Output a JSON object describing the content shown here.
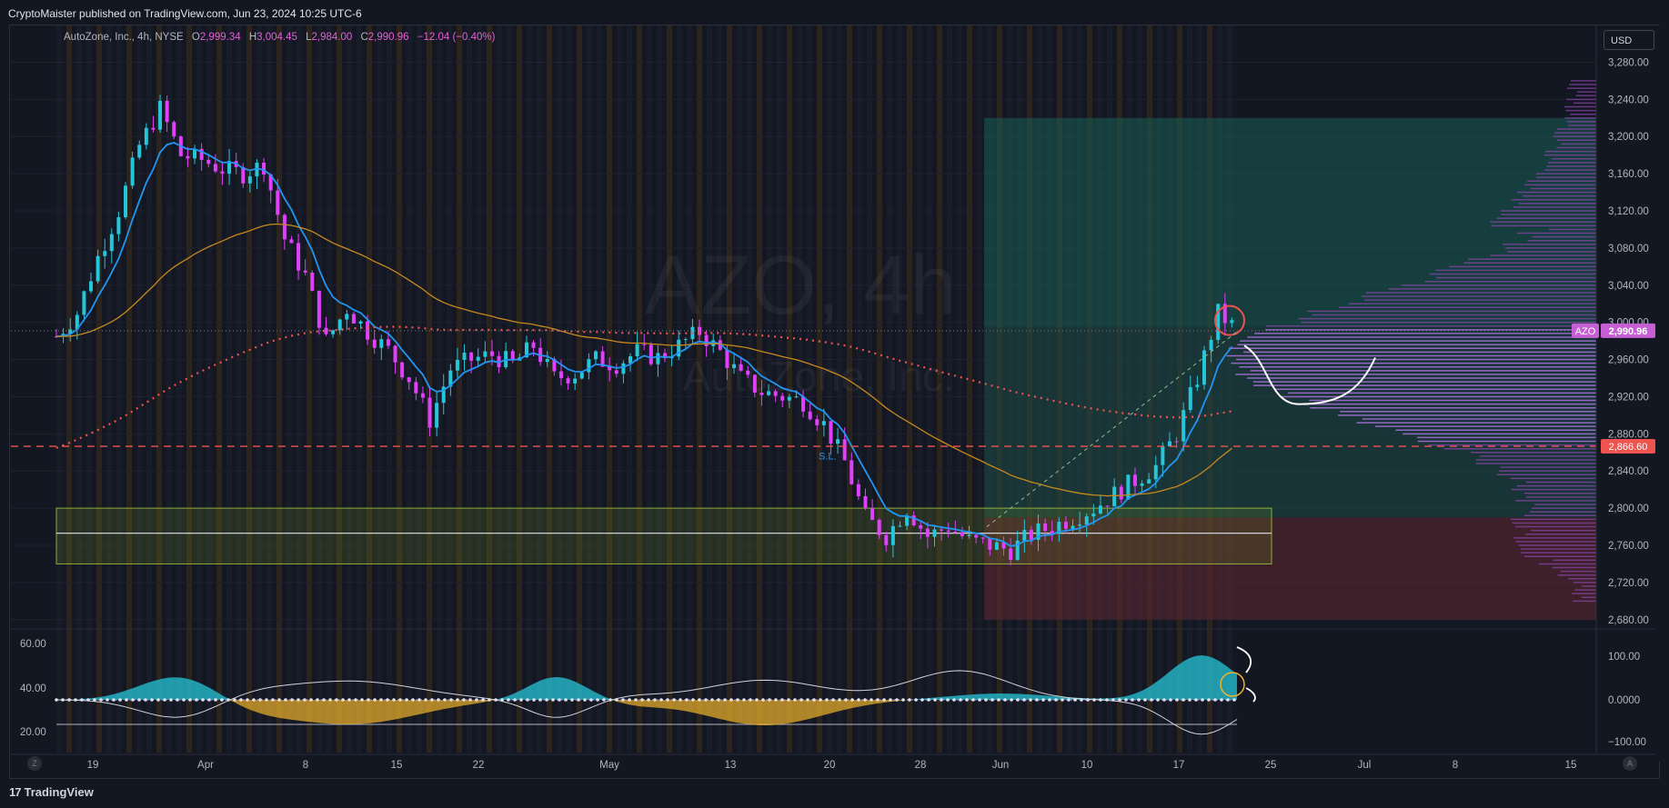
{
  "header": {
    "publisher_line": "CryptoMaister published on TradingView.com, Jun 23, 2024 10:25 UTC-6"
  },
  "legend": {
    "symbol_line": "AutoZone, Inc., 4h, NYSE",
    "open_key": "O",
    "open": "2,999.34",
    "high_key": "H",
    "high": "3,004.45",
    "low_key": "L",
    "low": "2,984.00",
    "close_key": "C",
    "close": "2,990.96",
    "change": "−12.04 (−0.40%)"
  },
  "currency_button": "USD",
  "watermark": {
    "line1": "AZO, 4h",
    "line2": "AutoZone, Inc."
  },
  "footer": {
    "brand": "TradingView",
    "left_corner": "Z",
    "right_corner": "A"
  },
  "colors": {
    "bull": "#26c6da",
    "bear": "#e040fb",
    "ema_fast": "#2196f3",
    "ema_slow": "#c8891e",
    "ma_dotted": "#ef5350",
    "stop_line": "#ef5350",
    "profit_zone": "#1b5e55",
    "loss_zone": "#5a2630",
    "oscillator_pos": "#26c6da",
    "oscillator_neg": "#f0b429"
  },
  "chart_data": {
    "type": "candlestick",
    "timeframe": "4h",
    "y_axis": {
      "ticks": [
        "3,280.00",
        "3,240.00",
        "3,200.00",
        "3,160.00",
        "3,120.00",
        "3,080.00",
        "3,040.00",
        "3,000.00",
        "2,960.00",
        "2,920.00",
        "2,880.00",
        "2,840.00",
        "2,800.00",
        "2,760.00",
        "2,720.00",
        "2,680.00"
      ],
      "range": [
        2670,
        3300
      ]
    },
    "x_axis": {
      "ticks": [
        "19",
        "Apr",
        "8",
        "15",
        "22",
        "May",
        "13",
        "20",
        "28",
        "Jun",
        "10",
        "17",
        "25",
        "Jul",
        "8",
        "15"
      ]
    },
    "price_labels": [
      {
        "symbol": "AZO",
        "value": "2,990.96"
      },
      {
        "value": "2,866.60"
      }
    ],
    "annotations": [
      "S.L."
    ],
    "close_path": [
      2985,
      3010,
      3070,
      3120,
      3190,
      3230,
      3180,
      3175,
      3165,
      3160,
      3170,
      3090,
      3050,
      2980,
      3015,
      2990,
      2970,
      2940,
      2895,
      2950,
      2960,
      2965,
      2955,
      2975,
      2940,
      2945,
      2960,
      2955,
      2968,
      2962,
      2975,
      2990,
      2968,
      2940,
      2925,
      2920,
      2915,
      2890,
      2850,
      2790,
      2770,
      2800,
      2770,
      2780,
      2765,
      2760,
      2755,
      2772,
      2780,
      2790,
      2800,
      2815,
      2830,
      2845,
      2880,
      2940,
      3010,
      2990
    ],
    "long_position": {
      "entry": 2995,
      "target": 3220,
      "stop": 2680
    },
    "support_zone": [
      2740,
      2800
    ],
    "oscillator": {
      "left_ticks": [
        "60.00",
        "40.00",
        "20.00"
      ],
      "right_ticks": [
        "100.00",
        "0.0000",
        "−100.00"
      ]
    }
  }
}
